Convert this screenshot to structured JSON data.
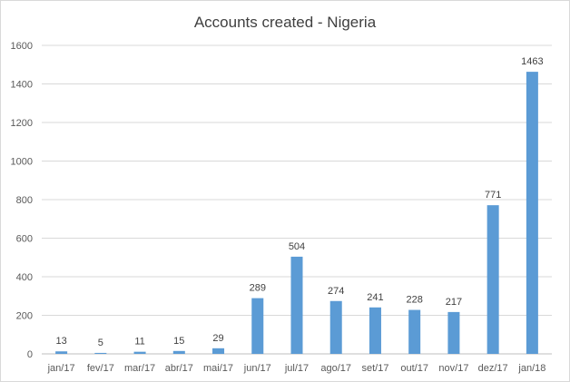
{
  "chart_data": {
    "type": "bar",
    "title": "Accounts created - Nigeria",
    "xlabel": "",
    "ylabel": "",
    "categories": [
      "jan/17",
      "fev/17",
      "mar/17",
      "abr/17",
      "mai/17",
      "jun/17",
      "jul/17",
      "ago/17",
      "set/17",
      "out/17",
      "nov/17",
      "dez/17",
      "jan/18"
    ],
    "values": [
      13,
      5,
      11,
      15,
      29,
      289,
      504,
      274,
      241,
      228,
      217,
      771,
      1463
    ],
    "data_labels": [
      "13",
      "5",
      "11",
      "15",
      "29",
      "289",
      "504",
      "274",
      "241",
      "228",
      "217",
      "771",
      "1463"
    ],
    "ylim": [
      0,
      1600
    ],
    "yticks": [
      0,
      200,
      400,
      600,
      800,
      1000,
      1200,
      1400,
      1600
    ],
    "ytick_labels": [
      "0",
      "200",
      "400",
      "600",
      "800",
      "1000",
      "1200",
      "1400",
      "1600"
    ],
    "grid": true,
    "legend": "none",
    "colors": {
      "bar": "#5b9bd5",
      "grid": "#d9d9d9",
      "text": "#595959"
    }
  }
}
